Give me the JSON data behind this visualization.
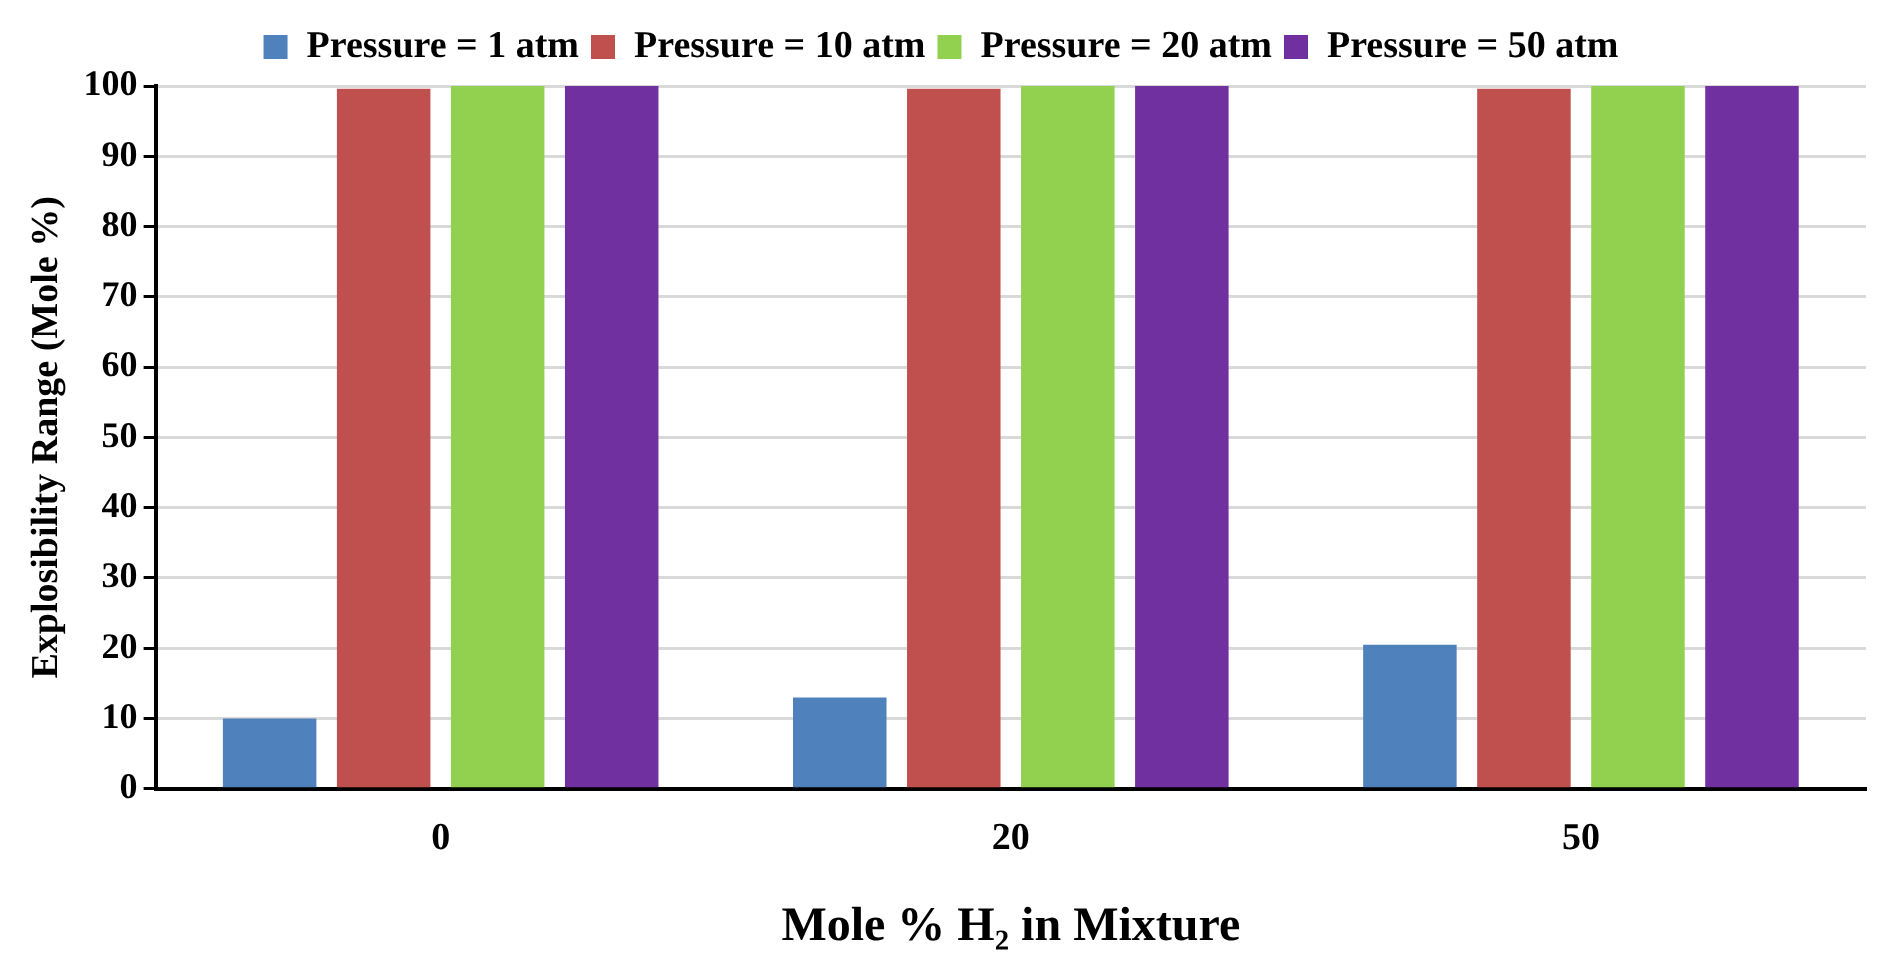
{
  "chart_data": {
    "type": "bar",
    "xlabel": "Mole % H₂ in Mixture",
    "ylabel": "Explosibility Range (Mole %)",
    "categories": [
      "0",
      "20",
      "50"
    ],
    "series": [
      {
        "name": "Pressure = 1 atm",
        "color": "#4f81bd",
        "values": [
          10,
          13,
          20.5
        ]
      },
      {
        "name": "Pressure = 10 atm",
        "color": "#c0504d",
        "values": [
          99.6,
          99.6,
          99.6
        ]
      },
      {
        "name": "Pressure = 20 atm",
        "color": "#92d050",
        "values": [
          100,
          100,
          100
        ]
      },
      {
        "name": "Pressure = 50 atm",
        "color": "#7030a0",
        "values": [
          100,
          100,
          100
        ]
      }
    ],
    "ylim": [
      0,
      100
    ],
    "yticks": [
      0,
      10,
      20,
      30,
      40,
      50,
      60,
      70,
      80,
      90,
      100
    ],
    "grid": "y",
    "legend": "top"
  }
}
